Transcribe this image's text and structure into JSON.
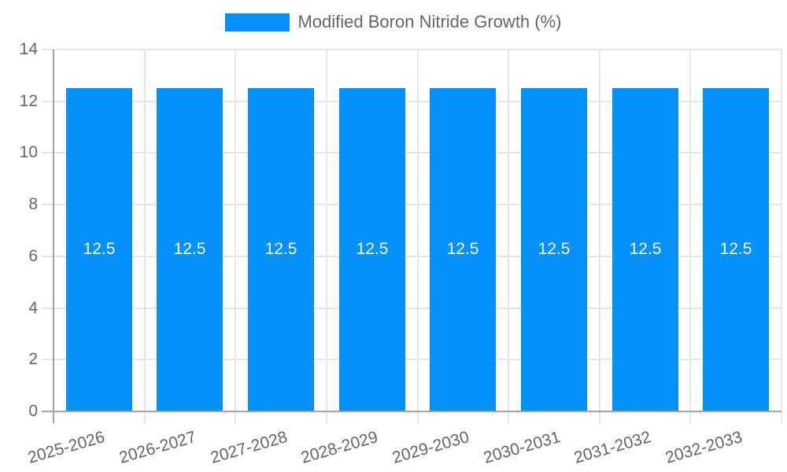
{
  "chart_data": {
    "type": "bar",
    "title": "",
    "categories": [
      "2025-2026",
      "2026-2027",
      "2027-2028",
      "2028-2029",
      "2029-2030",
      "2030-2031",
      "2031-2032",
      "2032-2033"
    ],
    "series": [
      {
        "name": "Modified Boron Nitride Growth (%)",
        "values": [
          12.5,
          12.5,
          12.5,
          12.5,
          12.5,
          12.5,
          12.5,
          12.5
        ]
      }
    ],
    "value_label_decimals": 1,
    "xlabel": "",
    "ylabel": "",
    "ylim": [
      0,
      14
    ],
    "ytick_step": 2,
    "grid": true,
    "legend_position": "top",
    "colors": {
      "bar": "#0590fa",
      "grid": "#e6e6e6",
      "axis": "#a2a2a2",
      "tick_text": "#666666",
      "value_label": "#ffffff",
      "background": "#ffffff"
    }
  },
  "legend": {
    "label": "Modified Boron Nitride Growth (%)"
  }
}
